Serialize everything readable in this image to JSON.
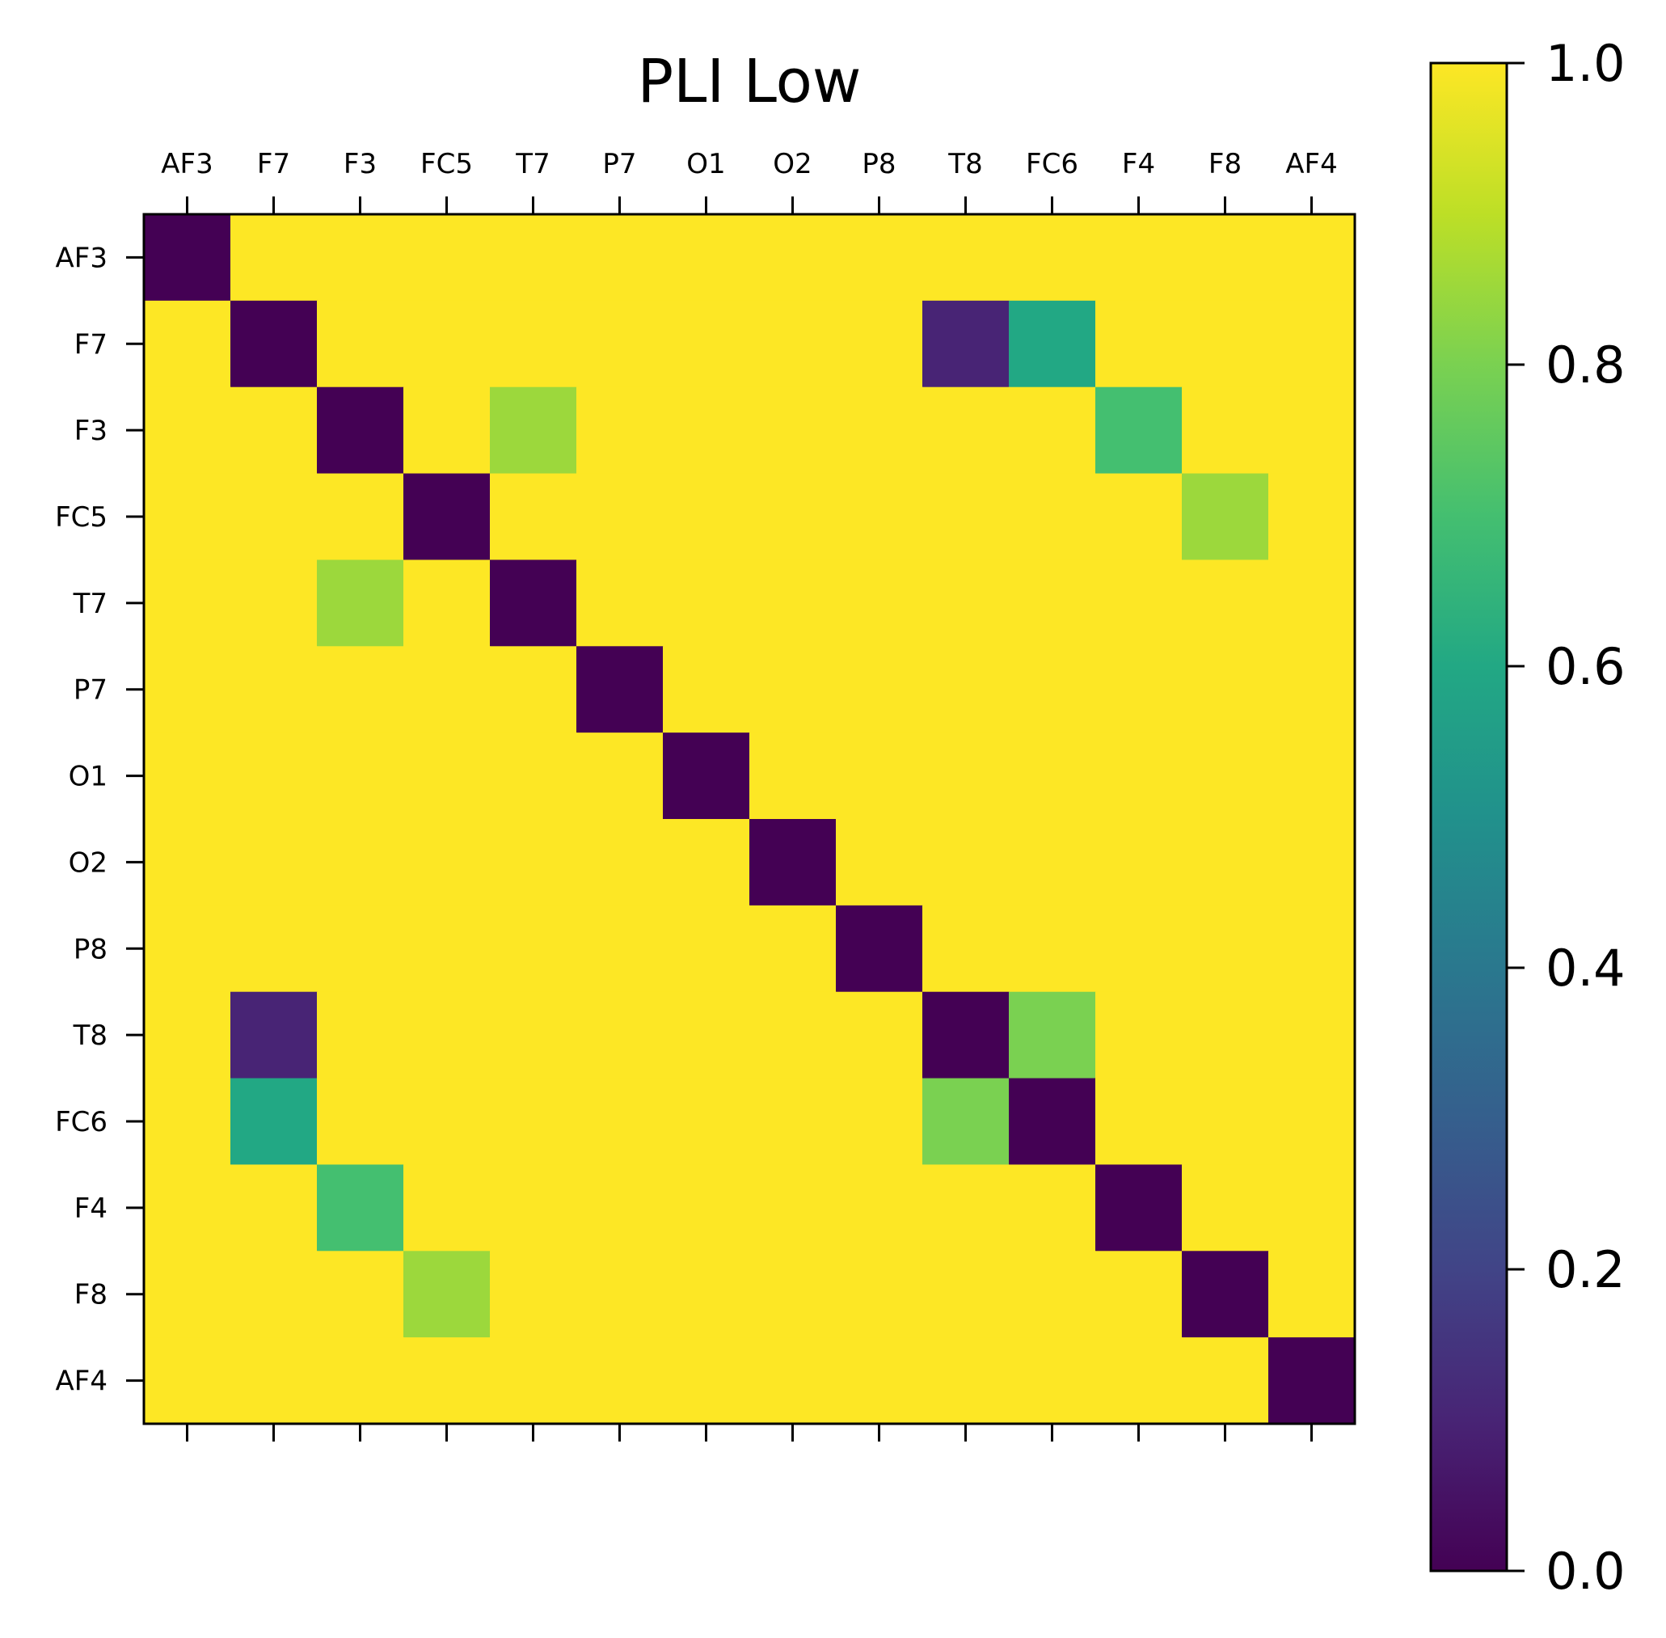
{
  "chart_data": {
    "type": "heatmap",
    "title": "PLI Low",
    "x_labels": [
      "AF3",
      "F7",
      "F3",
      "FC5",
      "T7",
      "P7",
      "O1",
      "O2",
      "P8",
      "T8",
      "FC6",
      "F4",
      "F8",
      "AF4"
    ],
    "y_labels": [
      "AF3",
      "F7",
      "F3",
      "FC5",
      "T7",
      "P7",
      "O1",
      "O2",
      "P8",
      "T8",
      "FC6",
      "F4",
      "F8",
      "AF4"
    ],
    "values": [
      [
        0,
        1,
        1,
        1,
        1,
        1,
        1,
        1,
        1,
        1,
        1,
        1,
        1,
        1
      ],
      [
        1,
        0,
        1,
        1,
        1,
        1,
        1,
        1,
        1,
        0.1,
        0.6,
        1,
        1,
        1
      ],
      [
        1,
        1,
        0,
        1,
        0.85,
        1,
        1,
        1,
        1,
        1,
        1,
        0.7,
        1,
        1
      ],
      [
        1,
        1,
        1,
        0,
        1,
        1,
        1,
        1,
        1,
        1,
        1,
        1,
        0.85,
        1
      ],
      [
        1,
        1,
        0.85,
        1,
        0,
        1,
        1,
        1,
        1,
        1,
        1,
        1,
        1,
        1
      ],
      [
        1,
        1,
        1,
        1,
        1,
        0,
        1,
        1,
        1,
        1,
        1,
        1,
        1,
        1
      ],
      [
        1,
        1,
        1,
        1,
        1,
        1,
        0,
        1,
        1,
        1,
        1,
        1,
        1,
        1
      ],
      [
        1,
        1,
        1,
        1,
        1,
        1,
        1,
        0,
        1,
        1,
        1,
        1,
        1,
        1
      ],
      [
        1,
        1,
        1,
        1,
        1,
        1,
        1,
        1,
        0,
        1,
        1,
        1,
        1,
        1
      ],
      [
        1,
        0.1,
        1,
        1,
        1,
        1,
        1,
        1,
        1,
        0,
        0.8,
        1,
        1,
        1
      ],
      [
        1,
        0.6,
        1,
        1,
        1,
        1,
        1,
        1,
        1,
        0.8,
        0,
        1,
        1,
        1
      ],
      [
        1,
        1,
        0.7,
        1,
        1,
        1,
        1,
        1,
        1,
        1,
        1,
        0,
        1,
        1
      ],
      [
        1,
        1,
        1,
        0.85,
        1,
        1,
        1,
        1,
        1,
        1,
        1,
        1,
        0,
        1
      ],
      [
        1,
        1,
        1,
        1,
        1,
        1,
        1,
        1,
        1,
        1,
        1,
        1,
        1,
        0
      ]
    ],
    "colormap": "viridis",
    "vmin": 0,
    "vmax": 1,
    "colorbar_ticks": [
      "0.0",
      "0.2",
      "0.4",
      "0.6",
      "0.8",
      "1.0"
    ],
    "x_tick_position": "top",
    "grid": false
  }
}
